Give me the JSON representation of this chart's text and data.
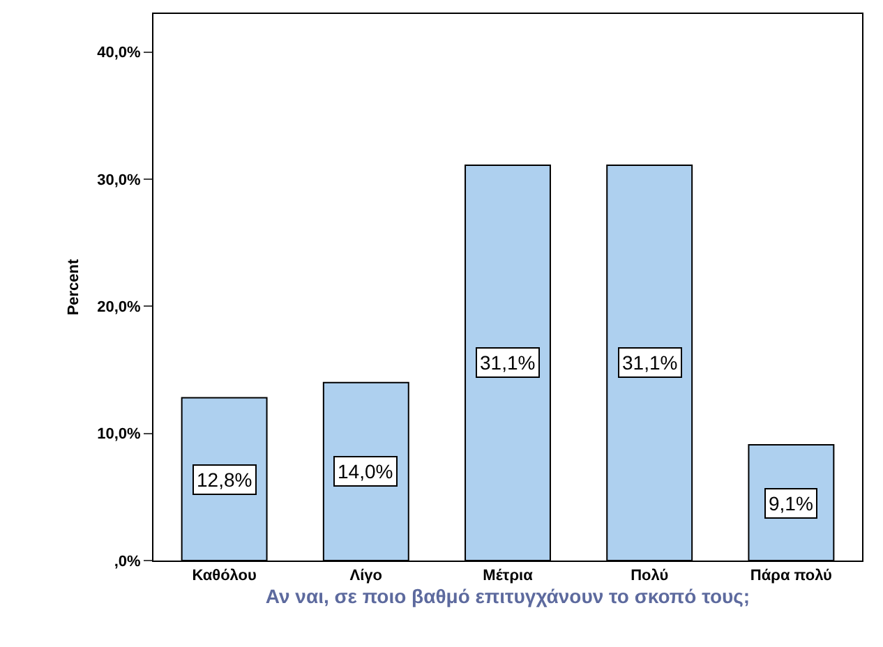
{
  "chart_data": {
    "type": "bar",
    "xlabel": "Αν ναι, σε ποιο βαθμό επιτυγχάνουν το σκοπό τους;",
    "ylabel": "Percent",
    "categories": [
      "Καθόλου",
      "Λίγο",
      "Μέτρια",
      "Πολύ",
      "Πάρα πολύ"
    ],
    "values": [
      12.8,
      14.0,
      31.1,
      31.1,
      9.1
    ],
    "value_labels": [
      "12,8%",
      "14,0%",
      "31,1%",
      "31,1%",
      "9,1%"
    ],
    "color": "#aed0ef",
    "ylim": [
      0,
      43
    ],
    "yticks": [
      {
        "value": 0,
        "label": ",0%"
      },
      {
        "value": 10,
        "label": "10,0%"
      },
      {
        "value": 20,
        "label": "20,0%"
      },
      {
        "value": 30,
        "label": "30,0%"
      },
      {
        "value": 40,
        "label": "40,0%"
      }
    ],
    "legend": false
  }
}
